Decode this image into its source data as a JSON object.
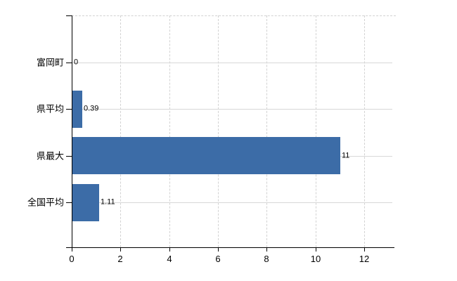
{
  "chart_data": {
    "type": "bar",
    "orientation": "horizontal",
    "categories": [
      "富岡町",
      "県平均",
      "県最大",
      "全国平均"
    ],
    "values": [
      0,
      0.39,
      11,
      1.11
    ],
    "value_labels": [
      "0",
      "0.39",
      "11",
      "1.11"
    ],
    "x_ticks": [
      0,
      2,
      4,
      6,
      8,
      10,
      12
    ],
    "x_tick_labels": [
      "0",
      "2",
      "4",
      "6",
      "8",
      "10",
      "12"
    ],
    "xlim": [
      0,
      13.2
    ],
    "title": "",
    "xlabel": "",
    "ylabel": "",
    "legend": "none",
    "bar_color": "#3c6ca7",
    "axis_color": "#000000",
    "text_color": "#000000",
    "gridline_color": "#d8d8d8",
    "grid": {
      "horizontal_lines": "solid, one per category",
      "vertical_lines": "dashed, one per x tick",
      "plot_top_border": "dashed"
    }
  }
}
